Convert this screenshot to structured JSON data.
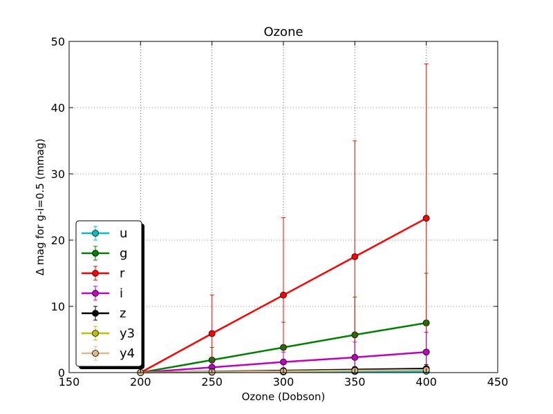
{
  "chart_data": {
    "type": "line",
    "title": "Ozone",
    "xlabel": "Ozone (Dobson)",
    "ylabel": "Δ mag for g-i=0.5 (mmag)",
    "xlim": [
      150,
      450
    ],
    "ylim": [
      0,
      50
    ],
    "xticks": [
      "150",
      "200",
      "250",
      "300",
      "350",
      "400",
      "450"
    ],
    "yticks": [
      "0",
      "10",
      "20",
      "30",
      "40",
      "50"
    ],
    "grid": true,
    "legend_position": "lower-left",
    "x": [
      200,
      250,
      300,
      350,
      400
    ],
    "series": [
      {
        "name": "u",
        "color": "#00bfbf",
        "values": [
          0,
          0.05,
          0.1,
          0.15,
          0.2
        ],
        "errors": [
          0,
          0.1,
          0.15,
          0.2,
          0.3
        ]
      },
      {
        "name": "g",
        "color": "#008000",
        "values": [
          0,
          1.9,
          3.8,
          5.7,
          7.5
        ],
        "errors": [
          0,
          1.9,
          3.8,
          5.7,
          7.5
        ]
      },
      {
        "name": "r",
        "color": "#ff0000",
        "values": [
          0,
          5.9,
          11.7,
          17.5,
          23.3
        ],
        "errors": [
          0,
          5.8,
          11.7,
          17.5,
          23.3
        ]
      },
      {
        "name": "i",
        "color": "#bf00bf",
        "values": [
          0,
          0.8,
          1.6,
          2.3,
          3.1
        ],
        "errors": [
          0,
          0.8,
          1.5,
          2.3,
          3.0
        ]
      },
      {
        "name": "z",
        "color": "#000000",
        "values": [
          0,
          0.15,
          0.3,
          0.45,
          0.6
        ],
        "errors": [
          0,
          0.15,
          0.3,
          0.45,
          0.6
        ]
      },
      {
        "name": "y3",
        "color": "#bfbf00",
        "values": [
          0,
          0.1,
          0.2,
          0.3,
          0.4
        ],
        "errors": [
          0,
          0.1,
          0.2,
          0.3,
          0.4
        ]
      },
      {
        "name": "y4",
        "color": "#deb887",
        "values": [
          0,
          0.1,
          0.2,
          0.3,
          0.4
        ],
        "errors": [
          0,
          0.1,
          0.2,
          0.3,
          0.4
        ]
      }
    ]
  }
}
